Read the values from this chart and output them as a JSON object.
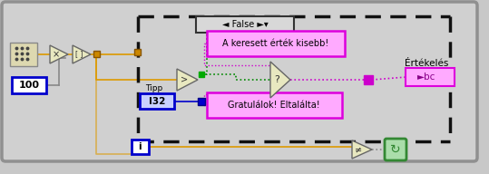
{
  "bg_color": "#c8c8c8",
  "outer_border_color": "#909090",
  "outer_face_color": "#d0d0d0",
  "case_border_color": "#202020",
  "case_face_color": "#e4e4e4",
  "orange": "#cc8800",
  "blue": "#0000cc",
  "purple": "#cc00cc",
  "green": "#00aa00",
  "tri_face": "#e8e8c0",
  "tri_edge": "#666666",
  "pink_face": "#ffaaff",
  "pink_edge": "#dd00dd",
  "text1": "A keresett érték kisebb!",
  "text2": "Gratulálok! Eltalálta!",
  "label_ertekeles": "Értékelés",
  "label_abc": "►bc",
  "label_tipp": "Tipp",
  "label_i32": "I32",
  "label_100": "100",
  "label_i": "i",
  "label_false": "◄ False ►▾",
  "wire_orange": "#dd9900",
  "wire_blue": "#0000cc",
  "wire_purple": "#cc00cc",
  "wire_green": "#008800",
  "wire_gray": "#888888"
}
